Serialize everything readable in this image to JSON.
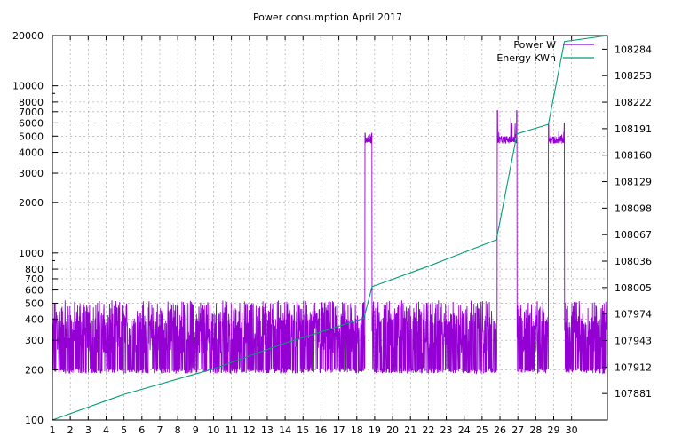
{
  "chart_data": {
    "type": "line",
    "title": "Power consumption April 2017",
    "xlabel": "",
    "ylabel": "",
    "x_ticks": [
      "1",
      "2",
      "3",
      "4",
      "5",
      "6",
      "7",
      "8",
      "9",
      "10",
      "11",
      "12",
      "13",
      "14",
      "15",
      "16",
      "17",
      "18",
      "19",
      "20",
      "21",
      "22",
      "23",
      "24",
      "25",
      "26",
      "27",
      "28",
      "29",
      "30"
    ],
    "xlim": [
      1,
      32
    ],
    "y_left": {
      "scale": "log",
      "lim": [
        100,
        20000
      ],
      "ticks": [
        100,
        200,
        300,
        400,
        500,
        600,
        700,
        800,
        1000,
        2000,
        3000,
        4000,
        5000,
        6000,
        7000,
        8000,
        10000,
        20000
      ],
      "labeled_ticks": [
        "100",
        "200",
        "300",
        "400",
        "500",
        "600",
        "700",
        "800",
        "1000",
        "2000",
        "3000",
        "4000",
        "5000",
        "6000",
        "7000",
        "8000",
        "10000",
        "20000"
      ]
    },
    "y_right": {
      "lim": [
        107850,
        108300
      ],
      "labeled_ticks": [
        "107881",
        "107912",
        "107943",
        "107974",
        "108005",
        "108036",
        "108067",
        "108098",
        "108129",
        "108160",
        "108191",
        "108222",
        "108253",
        "108284"
      ]
    },
    "grid": true,
    "legend_position": "top-right",
    "series": [
      {
        "name": "Power W",
        "axis": "left",
        "color": "#9400d3",
        "baseline_range": [
          190,
          520
        ],
        "high_segments": [
          {
            "start": 18.45,
            "end": 18.85,
            "level": 4800,
            "peak": 5200
          },
          {
            "start": 25.85,
            "end": 26.95,
            "level": 4800,
            "peak": 7100
          },
          {
            "start": 28.7,
            "end": 29.6,
            "level": 4800,
            "peak": 6000
          }
        ]
      },
      {
        "name": "Energy KWh",
        "axis": "right",
        "color": "#009e73",
        "points": [
          [
            1,
            107850
          ],
          [
            5,
            107880
          ],
          [
            10,
            107910
          ],
          [
            14,
            107940
          ],
          [
            18.4,
            107969
          ],
          [
            18.85,
            108006
          ],
          [
            22,
            108030
          ],
          [
            25.8,
            108061
          ],
          [
            26.95,
            108185
          ],
          [
            28.7,
            108196
          ],
          [
            29.6,
            108293
          ],
          [
            32,
            108300
          ]
        ]
      }
    ]
  }
}
